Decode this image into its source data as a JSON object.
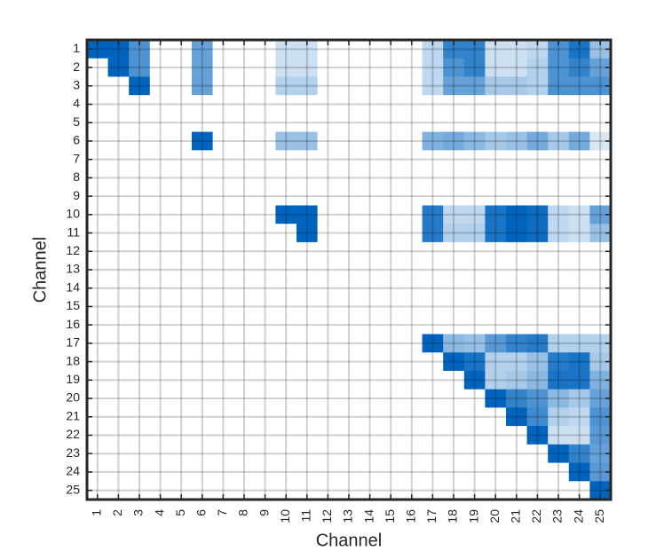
{
  "chart_data": {
    "type": "heatmap",
    "x_label": "Channel",
    "y_label": "Channel",
    "categories": [
      "1",
      "2",
      "3",
      "4",
      "5",
      "6",
      "7",
      "8",
      "9",
      "10",
      "11",
      "12",
      "13",
      "14",
      "15",
      "16",
      "17",
      "18",
      "19",
      "20",
      "21",
      "22",
      "23",
      "24",
      "25"
    ],
    "color": "#0064be",
    "grid": true,
    "values": [
      [
        1,
        1,
        0.7,
        0,
        0,
        0.6,
        0,
        0,
        0,
        0.2,
        0.2,
        0,
        0,
        0,
        0,
        0,
        0.25,
        0.8,
        0.8,
        0.2,
        0.2,
        0.25,
        0.7,
        0.9,
        0.4
      ],
      [
        0,
        1,
        0.7,
        0,
        0,
        0.6,
        0,
        0,
        0,
        0.2,
        0.2,
        0,
        0,
        0,
        0,
        0,
        0.25,
        0.7,
        0.8,
        0.2,
        0.2,
        0.3,
        0.7,
        0.8,
        0.6
      ],
      [
        0,
        0,
        1,
        0,
        0,
        0.6,
        0,
        0,
        0,
        0.3,
        0.3,
        0,
        0,
        0,
        0,
        0,
        0.25,
        0.6,
        0.6,
        0.35,
        0.35,
        0.3,
        0.7,
        0.7,
        0.7
      ],
      [
        0,
        0,
        0,
        0,
        0,
        0,
        0,
        0,
        0,
        0,
        0,
        0,
        0,
        0,
        0,
        0,
        0,
        0,
        0,
        0,
        0,
        0,
        0,
        0,
        0
      ],
      [
        0,
        0,
        0,
        0,
        0,
        0,
        0,
        0,
        0,
        0,
        0,
        0,
        0,
        0,
        0,
        0,
        0,
        0,
        0,
        0,
        0,
        0,
        0,
        0,
        0
      ],
      [
        0,
        0,
        0,
        0,
        0,
        1,
        0,
        0,
        0,
        0.4,
        0.4,
        0,
        0,
        0,
        0,
        0,
        0.5,
        0.55,
        0.45,
        0.35,
        0.4,
        0.55,
        0.35,
        0.55,
        0.15
      ],
      [
        0,
        0,
        0,
        0,
        0,
        0,
        0,
        0,
        0,
        0,
        0,
        0,
        0,
        0,
        0,
        0,
        0,
        0,
        0,
        0,
        0,
        0,
        0,
        0,
        0
      ],
      [
        0,
        0,
        0,
        0,
        0,
        0,
        0,
        0,
        0,
        0,
        0,
        0,
        0,
        0,
        0,
        0,
        0,
        0,
        0,
        0,
        0,
        0,
        0,
        0,
        0
      ],
      [
        0,
        0,
        0,
        0,
        0,
        0,
        0,
        0,
        0,
        0,
        0,
        0,
        0,
        0,
        0,
        0,
        0,
        0,
        0,
        0,
        0,
        0,
        0,
        0,
        0
      ],
      [
        0,
        0,
        0,
        0,
        0,
        0,
        0,
        0,
        0,
        1,
        1,
        0,
        0,
        0,
        0,
        0,
        0.85,
        0.25,
        0.25,
        0.9,
        1,
        0.95,
        0.25,
        0.2,
        0.6
      ],
      [
        0,
        0,
        0,
        0,
        0,
        0,
        0,
        0,
        0,
        0,
        1,
        0,
        0,
        0,
        0,
        0,
        0.85,
        0.3,
        0.3,
        0.9,
        1,
        0.95,
        0.25,
        0.2,
        0.4
      ],
      [
        0,
        0,
        0,
        0,
        0,
        0,
        0,
        0,
        0,
        0,
        0,
        0,
        0,
        0,
        0,
        0,
        0,
        0,
        0,
        0,
        0,
        0,
        0,
        0,
        0
      ],
      [
        0,
        0,
        0,
        0,
        0,
        0,
        0,
        0,
        0,
        0,
        0,
        0,
        0,
        0,
        0,
        0,
        0,
        0,
        0,
        0,
        0,
        0,
        0,
        0,
        0
      ],
      [
        0,
        0,
        0,
        0,
        0,
        0,
        0,
        0,
        0,
        0,
        0,
        0,
        0,
        0,
        0,
        0,
        0,
        0,
        0,
        0,
        0,
        0,
        0,
        0,
        0
      ],
      [
        0,
        0,
        0,
        0,
        0,
        0,
        0,
        0,
        0,
        0,
        0,
        0,
        0,
        0,
        0,
        0,
        0,
        0,
        0,
        0,
        0,
        0,
        0,
        0,
        0
      ],
      [
        0,
        0,
        0,
        0,
        0,
        0,
        0,
        0,
        0,
        0,
        0,
        0,
        0,
        0,
        0,
        0,
        0,
        0,
        0,
        0,
        0,
        0,
        0,
        0,
        0
      ],
      [
        0,
        0,
        0,
        0,
        0,
        0,
        0,
        0,
        0,
        0,
        0,
        0,
        0,
        0,
        0,
        0,
        1,
        0.45,
        0.4,
        0.65,
        0.8,
        0.85,
        0.3,
        0.3,
        0.3
      ],
      [
        0,
        0,
        0,
        0,
        0,
        0,
        0,
        0,
        0,
        0,
        0,
        0,
        0,
        0,
        0,
        0,
        0,
        1,
        0.9,
        0.3,
        0.3,
        0.4,
        0.85,
        0.9,
        0.35
      ],
      [
        0,
        0,
        0,
        0,
        0,
        0,
        0,
        0,
        0,
        0,
        0,
        0,
        0,
        0,
        0,
        0,
        0,
        0,
        1,
        0.3,
        0.35,
        0.45,
        0.9,
        0.9,
        0.5
      ],
      [
        0,
        0,
        0,
        0,
        0,
        0,
        0,
        0,
        0,
        0,
        0,
        0,
        0,
        0,
        0,
        0,
        0,
        0,
        0,
        1,
        0.8,
        0.7,
        0.45,
        0.35,
        0.6
      ],
      [
        0,
        0,
        0,
        0,
        0,
        0,
        0,
        0,
        0,
        0,
        0,
        0,
        0,
        0,
        0,
        0,
        0,
        0,
        0,
        0,
        1,
        0.75,
        0.3,
        0.25,
        0.7
      ],
      [
        0,
        0,
        0,
        0,
        0,
        0,
        0,
        0,
        0,
        0,
        0,
        0,
        0,
        0,
        0,
        0,
        0,
        0,
        0,
        0,
        0,
        1,
        0.2,
        0.2,
        0.65
      ],
      [
        0,
        0,
        0,
        0,
        0,
        0,
        0,
        0,
        0,
        0,
        0,
        0,
        0,
        0,
        0,
        0,
        0,
        0,
        0,
        0,
        0,
        0,
        1,
        0.8,
        0.6
      ],
      [
        0,
        0,
        0,
        0,
        0,
        0,
        0,
        0,
        0,
        0,
        0,
        0,
        0,
        0,
        0,
        0,
        0,
        0,
        0,
        0,
        0,
        0,
        0,
        1,
        0.65
      ],
      [
        0,
        0,
        0,
        0,
        0,
        0,
        0,
        0,
        0,
        0,
        0,
        0,
        0,
        0,
        0,
        0,
        0,
        0,
        0,
        0,
        0,
        0,
        0,
        0,
        1
      ]
    ]
  }
}
